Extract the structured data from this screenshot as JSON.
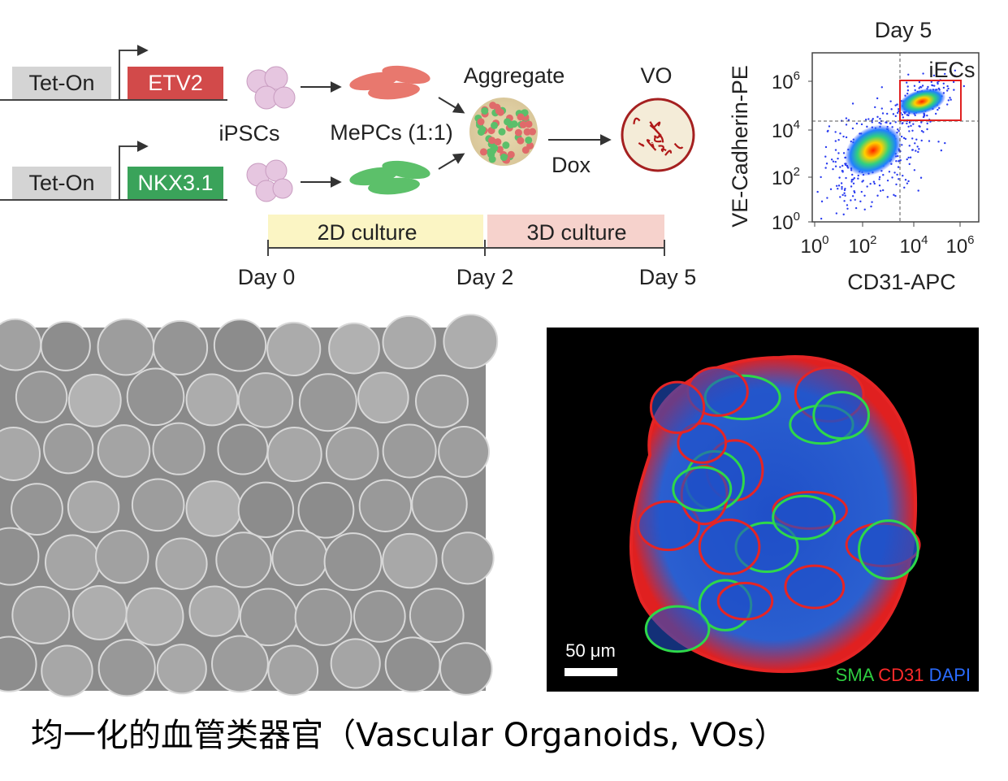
{
  "schematic": {
    "constructs": [
      {
        "promoter": "Tet-On",
        "gene": "ETV2"
      },
      {
        "promoter": "Tet-On",
        "gene": "NKX3.1"
      }
    ],
    "stages": {
      "ipsc": "iPSCs",
      "mepc": "MePCs (1:1)",
      "aggregate": "Aggregate",
      "vo": "VO",
      "dox": "Dox"
    },
    "timeline": {
      "phases": [
        "2D culture",
        "3D culture"
      ],
      "days": [
        "Day 0",
        "Day 2",
        "Day 5"
      ]
    }
  },
  "flow": {
    "title": "Day 5",
    "gate_label": "iECs",
    "y_label": "VE-Cadherin-PE",
    "x_label": "CD31-APC",
    "y_ticks": [
      {
        "base": "10",
        "exp": "6"
      },
      {
        "base": "10",
        "exp": "4"
      },
      {
        "base": "10",
        "exp": "2"
      },
      {
        "base": "10",
        "exp": "0"
      }
    ],
    "x_ticks": [
      {
        "base": "10",
        "exp": "0"
      },
      {
        "base": "10",
        "exp": "2"
      },
      {
        "base": "10",
        "exp": "4"
      },
      {
        "base": "10",
        "exp": "6"
      }
    ]
  },
  "fluorescence": {
    "scale_bar": "50 μm",
    "channels": [
      "SMA",
      "CD31",
      "DAPI"
    ]
  },
  "caption": "均一化的血管类器官（Vascular Organoids, VOs）"
}
